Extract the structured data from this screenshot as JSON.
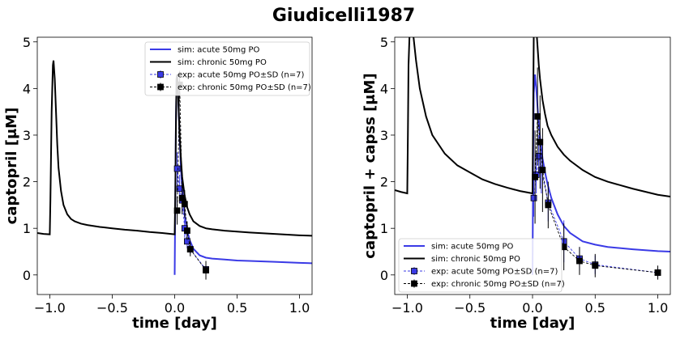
{
  "figure": {
    "title": "Giudicelli1987"
  },
  "chart_data": [
    {
      "type": "line",
      "xlabel": "time [day]",
      "ylabel": "captopril [μM]",
      "xlim": [
        -1.1,
        1.1
      ],
      "ylim": [
        -0.42,
        5.1
      ],
      "xticks": [
        -1.0,
        -0.5,
        0.0,
        0.5,
        1.0
      ],
      "xtick_labels": [
        "−1.0",
        "−0.5",
        "0.0",
        "0.5",
        "1.0"
      ],
      "yticks": [
        0,
        1,
        2,
        3,
        4,
        5
      ],
      "ytick_labels": [
        "0",
        "1",
        "2",
        "3",
        "4",
        "5"
      ],
      "legend_position": "top-right",
      "legend": [
        "sim: acute 50mg PO",
        "sim: chronic 50mg PO",
        "exp: acute 50mg PO±SD (n=7)",
        "exp: chronic 50mg PO±SD (n=7)"
      ],
      "series": [
        {
          "name": "sim: acute 50mg PO",
          "kind": "line",
          "color": "#3a3ae6",
          "x": [
            0.0,
            0.005,
            0.01,
            0.015,
            0.02,
            0.025,
            0.03,
            0.04,
            0.05,
            0.06,
            0.08,
            0.1,
            0.12,
            0.15,
            0.2,
            0.25,
            0.3,
            0.4,
            0.5,
            0.6,
            0.8,
            1.0,
            1.1
          ],
          "y": [
            0.0,
            1.7,
            3.3,
            4.2,
            4.3,
            4.1,
            3.7,
            2.9,
            2.3,
            1.85,
            1.3,
            0.95,
            0.75,
            0.56,
            0.42,
            0.37,
            0.35,
            0.33,
            0.31,
            0.3,
            0.28,
            0.26,
            0.25
          ]
        },
        {
          "name": "sim: chronic 50mg PO",
          "kind": "line",
          "color": "#000000",
          "x": [
            -1.1,
            -1.05,
            -1.0,
            -0.995,
            -0.985,
            -0.975,
            -0.97,
            -0.96,
            -0.95,
            -0.94,
            -0.93,
            -0.91,
            -0.89,
            -0.86,
            -0.83,
            -0.8,
            -0.75,
            -0.7,
            -0.6,
            -0.5,
            -0.4,
            -0.3,
            -0.2,
            -0.1,
            0.0,
            0.005,
            0.01,
            0.015,
            0.02,
            0.025,
            0.03,
            0.04,
            0.05,
            0.06,
            0.08,
            0.1,
            0.12,
            0.15,
            0.2,
            0.25,
            0.3,
            0.4,
            0.5,
            0.6,
            0.8,
            1.0,
            1.1
          ],
          "y": [
            0.9,
            0.88,
            0.87,
            1.6,
            3.5,
            4.5,
            4.6,
            4.2,
            3.5,
            2.8,
            2.3,
            1.8,
            1.5,
            1.3,
            1.2,
            1.15,
            1.1,
            1.07,
            1.03,
            1.0,
            0.97,
            0.95,
            0.92,
            0.9,
            0.87,
            1.7,
            3.2,
            4.2,
            4.3,
            4.1,
            3.7,
            3.0,
            2.5,
            2.1,
            1.7,
            1.45,
            1.3,
            1.15,
            1.05,
            1.0,
            0.98,
            0.95,
            0.93,
            0.91,
            0.88,
            0.85,
            0.84
          ]
        },
        {
          "name": "exp: acute 50mg PO±SD (n=7)",
          "kind": "points",
          "color": "#3a3ae6",
          "x": [
            0.02,
            0.04,
            0.06,
            0.08,
            0.1,
            0.125,
            0.25
          ],
          "y": [
            2.28,
            1.85,
            1.6,
            1.0,
            0.72,
            0.55,
            0.12
          ],
          "sd": [
            0.35,
            0.3,
            0.25,
            0.2,
            0.15,
            0.1,
            0.08
          ]
        },
        {
          "name": "exp: chronic 50mg PO±SD (n=7)",
          "kind": "points",
          "color": "#000000",
          "x": [
            0.02,
            0.04,
            0.06,
            0.08,
            0.1,
            0.125,
            0.25
          ],
          "y": [
            1.38,
            4.08,
            1.65,
            1.52,
            0.95,
            0.55,
            0.1
          ],
          "sd": [
            0.3,
            0.3,
            0.35,
            0.3,
            0.2,
            0.15,
            0.2
          ]
        }
      ]
    },
    {
      "type": "line",
      "xlabel": "time [day]",
      "ylabel": "captopril + capss [μM]",
      "xlim": [
        -1.1,
        1.1
      ],
      "ylim": [
        -0.42,
        5.1
      ],
      "xticks": [
        -1.0,
        -0.5,
        0.0,
        0.5,
        1.0
      ],
      "xtick_labels": [
        "−1.0",
        "−0.5",
        "0.0",
        "0.5",
        "1.0"
      ],
      "yticks": [
        0,
        1,
        2,
        3,
        4,
        5
      ],
      "ytick_labels": [
        "0",
        "1",
        "2",
        "3",
        "4",
        "5"
      ],
      "legend_position": "bottom-left",
      "legend": [
        "sim: acute 50mg PO",
        "sim: chronic 50mg PO",
        "exp: acute 50mg PO±SD (n=7)",
        "exp: chronic 50mg PO±SD (n=7)"
      ],
      "series": [
        {
          "name": "sim: acute 50mg PO",
          "kind": "line",
          "color": "#3a3ae6",
          "x": [
            0.0,
            0.005,
            0.01,
            0.02,
            0.03,
            0.04,
            0.05,
            0.06,
            0.08,
            0.1,
            0.12,
            0.15,
            0.2,
            0.25,
            0.3,
            0.4,
            0.5,
            0.6,
            0.8,
            1.0,
            1.1
          ],
          "y": [
            0.0,
            2.5,
            3.9,
            4.3,
            4.0,
            3.6,
            3.25,
            2.95,
            2.5,
            2.2,
            1.95,
            1.65,
            1.3,
            1.05,
            0.9,
            0.72,
            0.65,
            0.6,
            0.55,
            0.51,
            0.5
          ]
        },
        {
          "name": "sim: chronic 50mg PO",
          "kind": "line",
          "color": "#000000",
          "x": [
            -1.1,
            -1.05,
            -1.0,
            -0.995,
            -0.99,
            -0.98,
            -0.97,
            -0.96,
            -0.95,
            -0.93,
            -0.9,
            -0.85,
            -0.8,
            -0.7,
            -0.6,
            -0.5,
            -0.4,
            -0.3,
            -0.2,
            -0.1,
            0.0,
            0.005,
            0.01,
            0.015,
            0.03,
            0.04,
            0.05,
            0.06,
            0.08,
            0.1,
            0.12,
            0.15,
            0.2,
            0.25,
            0.3,
            0.4,
            0.5,
            0.6,
            0.8,
            1.0,
            1.1
          ],
          "y": [
            1.82,
            1.78,
            1.75,
            3.0,
            4.5,
            5.3,
            5.5,
            5.4,
            5.1,
            4.6,
            4.0,
            3.4,
            3.0,
            2.6,
            2.35,
            2.2,
            2.05,
            1.95,
            1.87,
            1.8,
            1.75,
            3.5,
            5.2,
            5.5,
            5.3,
            4.9,
            4.5,
            4.2,
            3.75,
            3.45,
            3.2,
            3.0,
            2.75,
            2.58,
            2.45,
            2.25,
            2.1,
            2.0,
            1.85,
            1.72,
            1.68
          ]
        },
        {
          "name": "exp: acute 50mg PO±SD (n=7)",
          "kind": "points",
          "color": "#3a3ae6",
          "x": [
            0.01,
            0.03,
            0.05,
            0.07,
            0.125,
            0.25,
            0.375,
            0.5,
            1.0
          ],
          "y": [
            1.65,
            2.15,
            2.55,
            2.25,
            1.55,
            0.72,
            0.35,
            0.22,
            0.05
          ],
          "sd": [
            0.4,
            0.4,
            0.45,
            0.5,
            0.4,
            0.45,
            0.25,
            0.2,
            0.1
          ]
        },
        {
          "name": "exp: chronic 50mg PO±SD (n=7)",
          "kind": "points",
          "color": "#000000",
          "x": [
            0.02,
            0.04,
            0.06,
            0.08,
            0.125,
            0.25,
            0.375,
            0.5,
            1.0
          ],
          "y": [
            2.1,
            3.4,
            2.85,
            2.25,
            1.5,
            0.6,
            0.3,
            0.2,
            0.05
          ],
          "sd": [
            1.0,
            1.05,
            1.0,
            0.9,
            0.5,
            0.5,
            0.3,
            0.25,
            0.15
          ]
        }
      ]
    }
  ]
}
